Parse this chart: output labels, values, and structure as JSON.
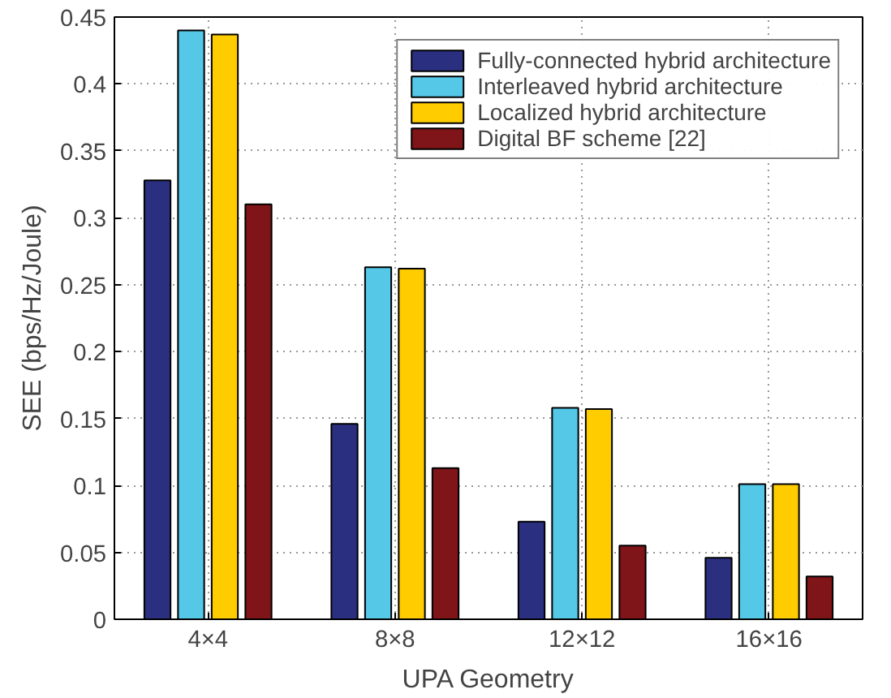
{
  "chart_data": {
    "type": "bar",
    "xlabel": "UPA Geometry",
    "ylabel": "SEE (bps/Hz/Joule)",
    "categories": [
      "4×4",
      "8×8",
      "12×12",
      "16×16"
    ],
    "series": [
      {
        "name": "Fully-connected hybrid architecture",
        "color": "#2b2f80",
        "values": [
          0.328,
          0.146,
          0.073,
          0.046
        ]
      },
      {
        "name": "Interleaved hybrid architecture",
        "color": "#55c8e8",
        "values": [
          0.44,
          0.263,
          0.158,
          0.101
        ]
      },
      {
        "name": "Localized hybrid architecture",
        "color": "#ffcc00",
        "values": [
          0.437,
          0.262,
          0.157,
          0.101
        ]
      },
      {
        "name": "Digital BF scheme [22]",
        "color": "#7f1518",
        "values": [
          0.31,
          0.113,
          0.055,
          0.032
        ]
      }
    ],
    "ylim": [
      0,
      0.45
    ],
    "yticks": [
      0,
      0.05,
      0.1,
      0.15,
      0.2,
      0.25,
      0.3,
      0.35,
      0.4,
      0.45
    ],
    "grid": true,
    "legend": "top right"
  }
}
